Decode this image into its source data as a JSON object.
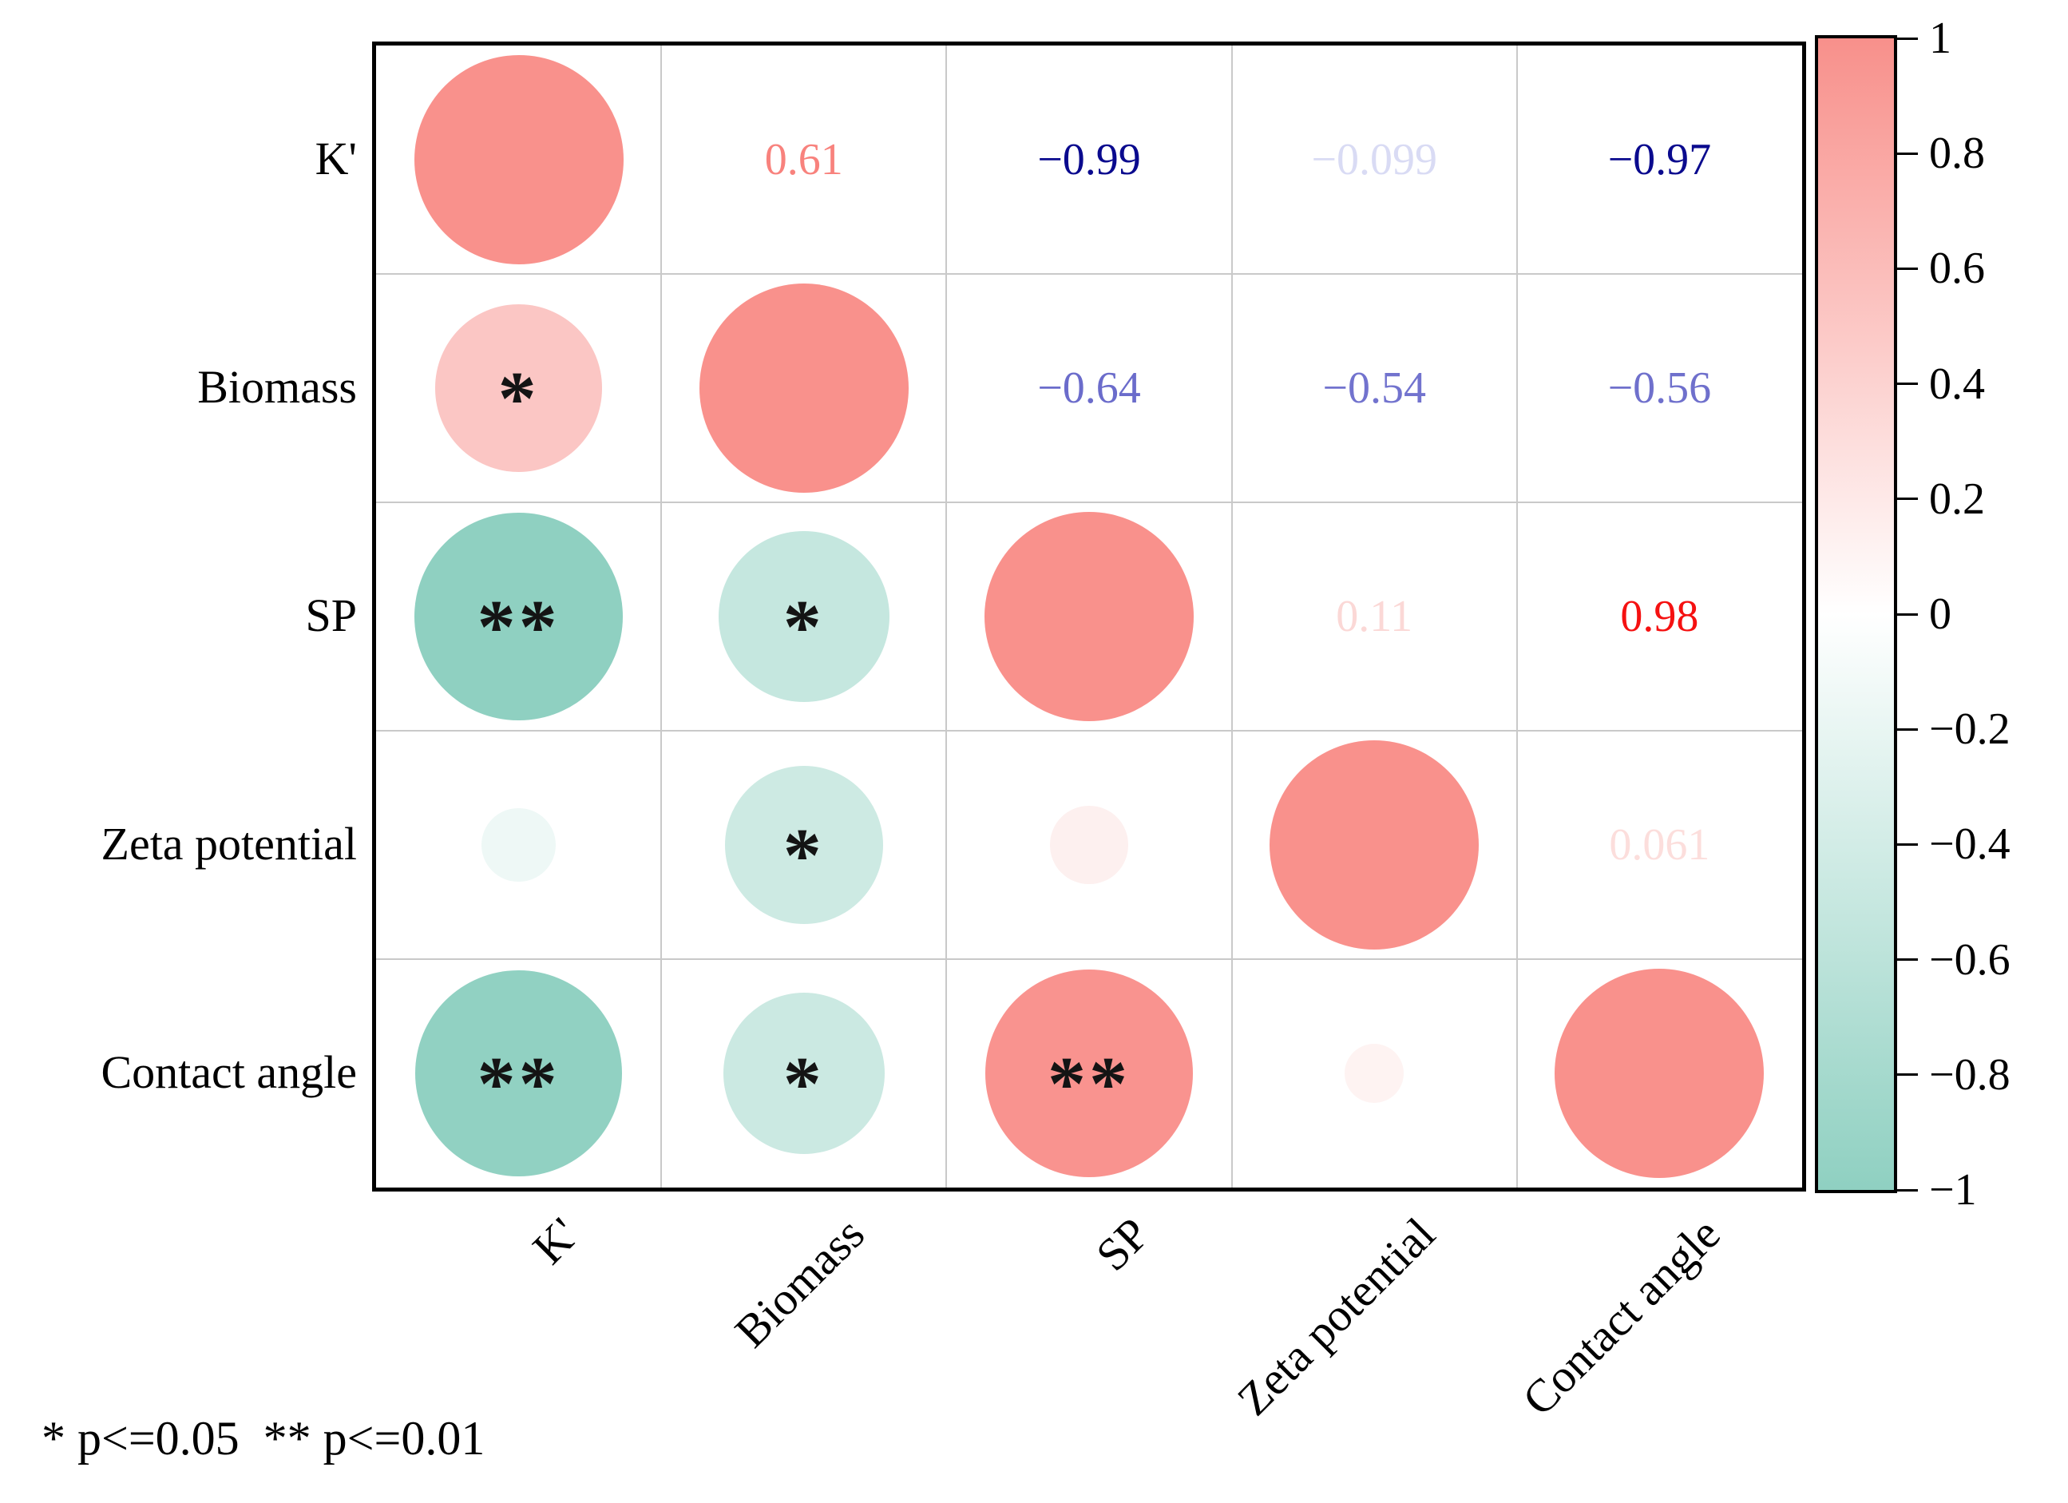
{
  "chart_data": {
    "type": "heatmap",
    "subtype": "correlogram-circles",
    "title": "",
    "variables": [
      "K'",
      "Biomass",
      "SP",
      "Zeta potential",
      "Contact angle"
    ],
    "matrix": [
      [
        1,
        0.61,
        -0.99,
        -0.099,
        -0.97
      ],
      [
        0.61,
        1,
        -0.64,
        -0.54,
        -0.56
      ],
      [
        -0.99,
        -0.64,
        1,
        0.11,
        0.98
      ],
      [
        -0.099,
        -0.54,
        0.11,
        1,
        0.061
      ],
      [
        -0.97,
        -0.56,
        0.98,
        0.061,
        1
      ]
    ],
    "significance": [
      [
        "",
        "",
        "",
        "",
        ""
      ],
      [
        "*",
        "",
        "",
        "",
        ""
      ],
      [
        "**",
        "*",
        "",
        "",
        ""
      ],
      [
        "",
        "*",
        "",
        "",
        ""
      ],
      [
        "**",
        "*",
        "**",
        "",
        ""
      ]
    ],
    "upper_cells": [
      {
        "row": 0,
        "col": 1,
        "text": "0.61",
        "color": "#F8827D"
      },
      {
        "row": 0,
        "col": 2,
        "text": "−0.99",
        "color": "#0A0A8E"
      },
      {
        "row": 0,
        "col": 3,
        "text": "−0.099",
        "color": "#D9DBF4"
      },
      {
        "row": 0,
        "col": 4,
        "text": "−0.97",
        "color": "#0A0A8E"
      },
      {
        "row": 1,
        "col": 2,
        "text": "−0.64",
        "color": "#6B6CCB"
      },
      {
        "row": 1,
        "col": 3,
        "text": "−0.54",
        "color": "#7273CE"
      },
      {
        "row": 1,
        "col": 4,
        "text": "−0.56",
        "color": "#6F70CC"
      },
      {
        "row": 2,
        "col": 3,
        "text": "0.11",
        "color": "#FBD8D6"
      },
      {
        "row": 2,
        "col": 4,
        "text": "0.98",
        "color": "#F51111"
      },
      {
        "row": 3,
        "col": 4,
        "text": "0.061",
        "color": "#FCDEDC"
      }
    ],
    "circle_cells": [
      {
        "row": 0,
        "col": 0,
        "value": 1,
        "fill": "#F9918C",
        "stars": ""
      },
      {
        "row": 1,
        "col": 1,
        "value": 1,
        "fill": "#F9918C",
        "stars": ""
      },
      {
        "row": 2,
        "col": 2,
        "value": 1,
        "fill": "#F9918C",
        "stars": ""
      },
      {
        "row": 3,
        "col": 3,
        "value": 1,
        "fill": "#F9918C",
        "stars": ""
      },
      {
        "row": 4,
        "col": 4,
        "value": 1,
        "fill": "#F9918C",
        "stars": ""
      },
      {
        "row": 1,
        "col": 0,
        "value": 0.61,
        "fill": "#FBC6C4",
        "stars": "*"
      },
      {
        "row": 2,
        "col": 0,
        "value": 0.99,
        "fill": "#8FD0C1",
        "stars": "**"
      },
      {
        "row": 2,
        "col": 1,
        "value": 0.64,
        "fill": "#C5E7DF",
        "stars": "*"
      },
      {
        "row": 3,
        "col": 0,
        "value": 0.099,
        "fill": "#EEF8F6",
        "stars": ""
      },
      {
        "row": 3,
        "col": 1,
        "value": 0.54,
        "fill": "#CDEAE3",
        "stars": "*"
      },
      {
        "row": 3,
        "col": 2,
        "value": 0.11,
        "fill": "#FDF0EF",
        "stars": ""
      },
      {
        "row": 4,
        "col": 0,
        "value": 0.97,
        "fill": "#91D1C2",
        "stars": "**"
      },
      {
        "row": 4,
        "col": 1,
        "value": 0.56,
        "fill": "#CBE9E2",
        "stars": "*"
      },
      {
        "row": 4,
        "col": 2,
        "value": 0.98,
        "fill": "#F9938F",
        "stars": "**"
      },
      {
        "row": 4,
        "col": 3,
        "value": 0.061,
        "fill": "#FEF3F2",
        "stars": ""
      }
    ],
    "colorbar": {
      "position": "right",
      "ticks": [
        "1",
        "0.8",
        "0.6",
        "0.4",
        "0.2",
        "0",
        "−0.2",
        "−0.4",
        "−0.6",
        "−0.8",
        "−1"
      ],
      "range": [
        1,
        -1
      ],
      "top_color": "#F8908B",
      "mid_color": "#FFFFFF",
      "bottom_color": "#8FD0C1"
    },
    "grid": {
      "on": true,
      "line_color": "#c9c9c9",
      "border_color": "#000000"
    },
    "legend_note": "* p<=0.05  ** p<=0.01"
  }
}
